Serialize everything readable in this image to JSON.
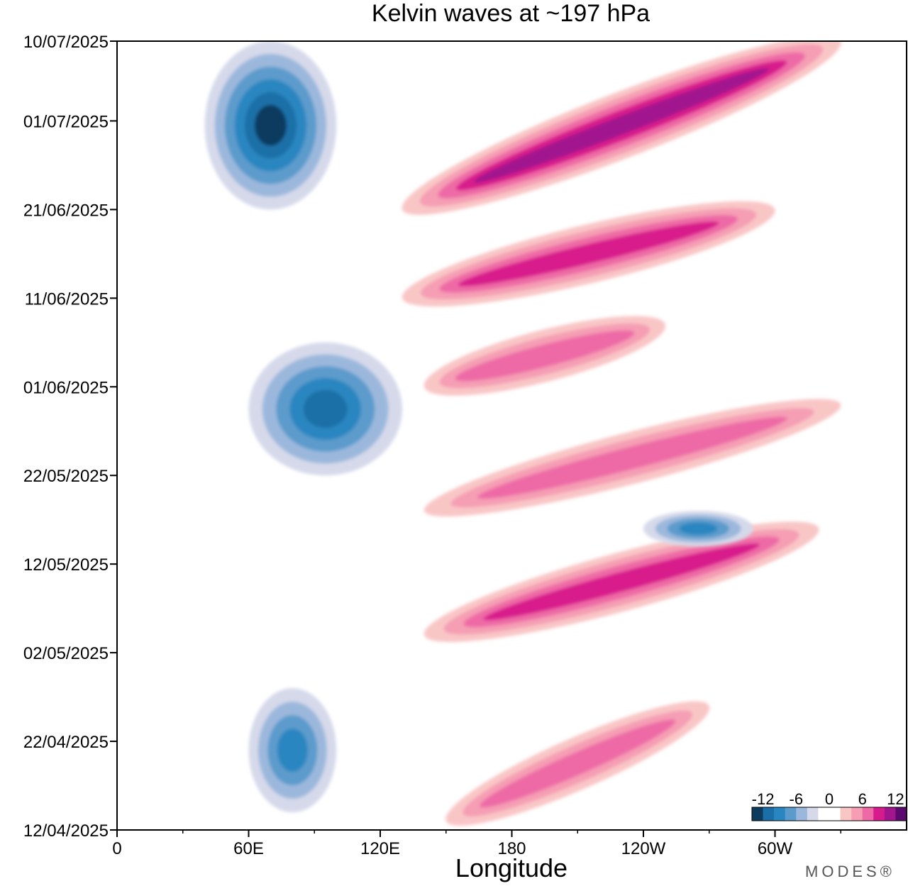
{
  "chart_data": {
    "type": "heatmap",
    "title": "Kelvin waves at ~197 hPa",
    "xlabel": "Longitude",
    "ylabel": "",
    "x_ticks": [
      "0",
      "60E",
      "120E",
      "180",
      "120W",
      "60W"
    ],
    "x_tick_values": [
      0,
      60,
      120,
      180,
      240,
      300
    ],
    "xlim": [
      0,
      360
    ],
    "y_ticks": [
      "10/07/2025",
      "01/07/2025",
      "21/06/2025",
      "11/06/2025",
      "01/06/2025",
      "22/05/2025",
      "12/05/2025",
      "02/05/2025",
      "22/04/2025",
      "12/04/2025"
    ],
    "y_tick_values_days": [
      89,
      80,
      70,
      60,
      50,
      40,
      30,
      20,
      10,
      0
    ],
    "ylim": [
      "12/04/2025",
      "10/07/2025"
    ],
    "colorbar": {
      "labels": [
        "-12",
        "-6",
        "0",
        "6",
        "12"
      ],
      "label_values": [
        -12,
        -6,
        0,
        6,
        12
      ],
      "levels": [
        -12,
        -10,
        -8,
        -6,
        -4,
        -2,
        0,
        2,
        4,
        6,
        8,
        10,
        12
      ],
      "colors": [
        "#0c3b5e",
        "#1a6fa8",
        "#2a86c0",
        "#5b9bcc",
        "#9bb8dc",
        "#d5d9ea",
        "#ffffff",
        "#ffffff",
        "#f9c6c6",
        "#f59eb4",
        "#ee6aa6",
        "#d81b8c",
        "#a1168e",
        "#5a0a6e"
      ]
    },
    "features": [
      {
        "sign": "negative",
        "lon_range": [
          40,
          100
        ],
        "dates": [
          "21/06/2025",
          "10/07/2025"
        ],
        "min": -12
      },
      {
        "sign": "negative",
        "lon_range": [
          60,
          130
        ],
        "dates": [
          "22/05/2025",
          "06/06/2025"
        ],
        "min": -10
      },
      {
        "sign": "negative",
        "lon_range": [
          60,
          100
        ],
        "dates": [
          "14/04/2025",
          "28/04/2025"
        ],
        "min": -8
      },
      {
        "sign": "positive",
        "lon_range": [
          130,
          330
        ],
        "dates": [
          "21/06/2025",
          "10/07/2025"
        ],
        "max": 10
      },
      {
        "sign": "positive",
        "lon_range": [
          130,
          300
        ],
        "dates": [
          "11/06/2025",
          "21/06/2025"
        ],
        "max": 8
      },
      {
        "sign": "positive",
        "lon_range": [
          140,
          250
        ],
        "dates": [
          "01/06/2025",
          "08/06/2025"
        ],
        "max": 6
      },
      {
        "sign": "positive",
        "lon_range": [
          140,
          330
        ],
        "dates": [
          "18/05/2025",
          "30/05/2025"
        ],
        "max": 6
      },
      {
        "sign": "positive",
        "lon_range": [
          140,
          320
        ],
        "dates": [
          "04/05/2025",
          "16/05/2025"
        ],
        "max": 8
      },
      {
        "sign": "negative",
        "lon_range": [
          240,
          290
        ],
        "dates": [
          "14/05/2025",
          "18/05/2025"
        ],
        "min": -8
      },
      {
        "sign": "positive",
        "lon_range": [
          150,
          270
        ],
        "dates": [
          "13/04/2025",
          "26/04/2025"
        ],
        "max": 6
      }
    ]
  },
  "branding": {
    "text": "MODES®"
  }
}
